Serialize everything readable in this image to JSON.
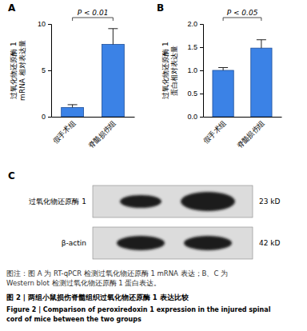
{
  "chart_data": [
    {
      "type": "bar",
      "title": "A",
      "categories": [
        "假手术组",
        "脊髓损伤组"
      ],
      "values": [
        1.0,
        7.8
      ],
      "errors": [
        0.3,
        1.7
      ],
      "color": "#3b82e6",
      "ylabel": [
        "过氧化物还原酶 1",
        "mRNA 相对表达量"
      ],
      "ylim": [
        0,
        10
      ],
      "yticks": [
        0,
        5,
        10
      ],
      "annotations": [
        "P < 0.01"
      ]
    },
    {
      "type": "bar",
      "title": "B",
      "categories": [
        "假手术组",
        "脊髓损伤组"
      ],
      "values": [
        1.0,
        1.48
      ],
      "errors": [
        0.06,
        0.18
      ],
      "color": "#3b82e6",
      "ylabel": [
        "过氧化物还原酶 1",
        "蛋白相对表达量"
      ],
      "ylim": [
        0,
        2.0
      ],
      "yticks": [
        {
          "value": 0,
          "label": "0.0"
        },
        {
          "value": 0.5,
          "label": "0.5"
        },
        {
          "value": 1.0,
          "label": "1.0"
        },
        {
          "value": 1.5,
          "label": "1.5"
        },
        {
          "value": 2.0,
          "label": "2.0"
        }
      ],
      "annotations": [
        "P < 0.05"
      ]
    }
  ],
  "blot": {
    "title": "C",
    "rows": [
      {
        "label": "过氧化物还原酶 1",
        "size": "23 kD"
      },
      {
        "label": "β-actin",
        "size": "42 kD"
      }
    ]
  },
  "caption": {
    "note": [
      "图注：图 A 为 RT-qPCR 检测过氧化物还原酶 1 mRNA 表达；B、C 为",
      "Western blot 检测过氧化物还原酶 1 蛋白表达。"
    ],
    "title": "图 2 | 两组小鼠损伤脊髓组织过氧化物还原酶 1 表达比较",
    "title_en": [
      "Figure 2 | Comparison of peroxiredoxin 1 expression in the injured spinal",
      "cord of mice between the two groups"
    ]
  }
}
